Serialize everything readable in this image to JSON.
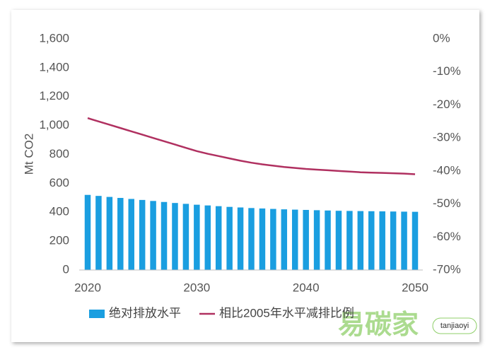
{
  "chart_data": {
    "type": "bar",
    "y_label": "Mt CO2",
    "x": [
      2020,
      2021,
      2022,
      2023,
      2024,
      2025,
      2026,
      2027,
      2028,
      2029,
      2030,
      2031,
      2032,
      2033,
      2034,
      2035,
      2036,
      2037,
      2038,
      2039,
      2040,
      2041,
      2042,
      2043,
      2044,
      2045,
      2046,
      2047,
      2048,
      2049,
      2050
    ],
    "xlim": [
      2020,
      2050
    ],
    "xticks": [
      2020,
      2030,
      2040,
      2050
    ],
    "ylim": [
      0,
      1600
    ],
    "yticks": [
      0,
      200,
      400,
      600,
      800,
      {
        "value": 1000,
        "label": "1,000"
      },
      {
        "value": 1200,
        "label": "1,200"
      },
      {
        "value": 1400,
        "label": "1,400"
      },
      {
        "value": 1600,
        "label": "1,600"
      }
    ],
    "y2lim": [
      -70,
      0
    ],
    "y2ticks": [
      {
        "value": 0,
        "label": "0%"
      },
      {
        "value": -10,
        "label": "-10%"
      },
      {
        "value": -20,
        "label": "-20%"
      },
      {
        "value": -30,
        "label": "-30%"
      },
      {
        "value": -40,
        "label": "-40%"
      },
      {
        "value": -50,
        "label": "-50%"
      },
      {
        "value": -60,
        "label": "-60%"
      },
      {
        "value": -70,
        "label": "-70%"
      }
    ],
    "grid": false,
    "legend": "bottom",
    "series": [
      {
        "name": "绝对排放水平",
        "type": "bar",
        "color": "#1a9ee0",
        "values": [
          520,
          513,
          506,
          499,
          492,
          485,
          478,
          471,
          464,
          458,
          452,
          447,
          442,
          437,
          433,
          429,
          426,
          423,
          420,
          418,
          416,
          414,
          412,
          410,
          409,
          408,
          407,
          406,
          405,
          404,
          403
        ]
      },
      {
        "name": "相比2005年水平减排比例",
        "type": "line",
        "axis": "y2",
        "color": "#b03060",
        "values": [
          -24,
          -25,
          -26,
          -27,
          -28,
          -29,
          -30,
          -31,
          -32,
          -33,
          -34,
          -34.8,
          -35.5,
          -36.2,
          -36.9,
          -37.5,
          -38,
          -38.4,
          -38.8,
          -39.1,
          -39.4,
          -39.6,
          -39.8,
          -40,
          -40.2,
          -40.4,
          -40.5,
          -40.6,
          -40.7,
          -40.8,
          -41
        ]
      }
    ],
    "watermark": [
      "易碳家",
      "tanjiaoyi"
    ]
  }
}
